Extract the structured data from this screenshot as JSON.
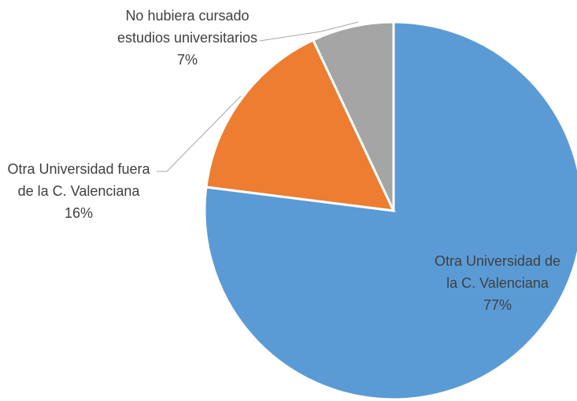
{
  "chart_data": {
    "type": "pie",
    "categories": [
      "Otra Universidad de la C. Valenciana",
      "Otra Universidad fuera de la C. Valenciana",
      "No hubiera cursado estudios universitarios"
    ],
    "values": [
      77,
      16,
      7
    ],
    "value_labels": [
      "77%",
      "16%",
      "7%"
    ],
    "colors": [
      "#5b9bd5",
      "#ed7d31",
      "#a5a5a5"
    ]
  }
}
